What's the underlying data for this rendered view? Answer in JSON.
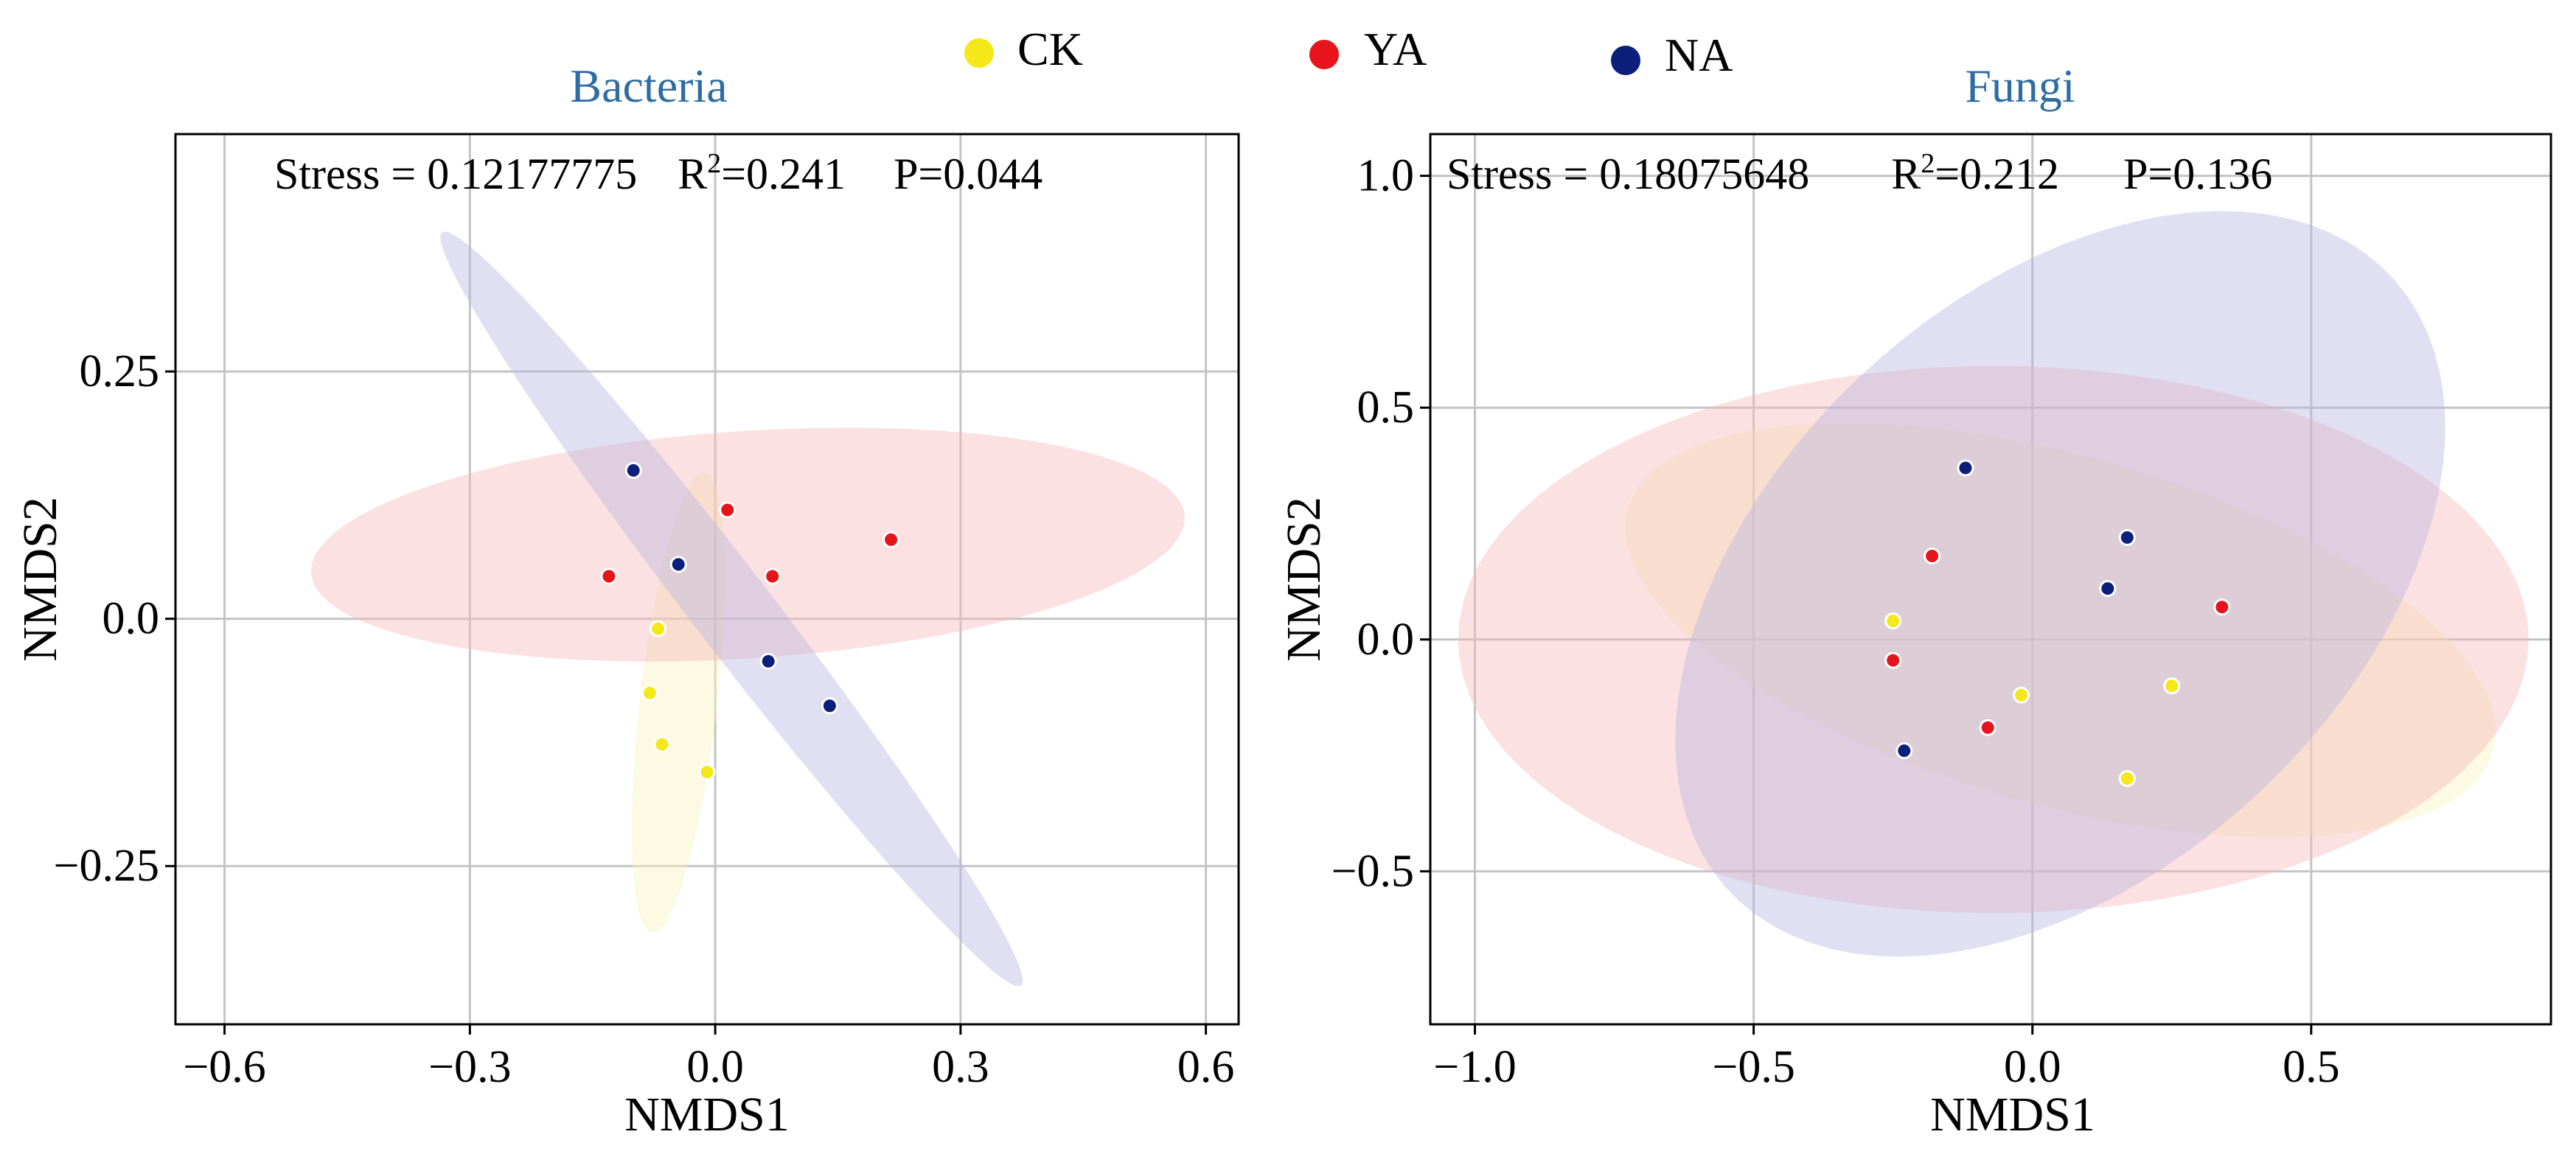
{
  "legend": [
    {
      "label": "CK",
      "color": "#f4e81a"
    },
    {
      "label": "YA",
      "color": "#e8141c"
    },
    {
      "label": "NA",
      "color": "#0c1f7a"
    }
  ],
  "chart_data": [
    {
      "type": "scatter",
      "title": "Bacteria",
      "xlabel": "NMDS1",
      "ylabel": "NMDS2",
      "xlim": [
        -0.66,
        0.64
      ],
      "ylim": [
        -0.41,
        0.49
      ],
      "xticks": [
        -0.6,
        -0.3,
        0.0,
        0.3,
        0.6
      ],
      "xtick_labels": [
        "−0.6",
        "−0.3",
        "0.0",
        "0.3",
        "0.6"
      ],
      "yticks": [
        -0.25,
        0.0,
        0.25
      ],
      "ytick_labels": [
        "−0.25",
        "0.0",
        "0.25"
      ],
      "grid": true,
      "stats": {
        "stress": "Stress = 0.12177775",
        "r2_prefix": "R",
        "r2_sup": "2",
        "r2_value": "=0.241",
        "p": "P=0.044"
      },
      "series": [
        {
          "name": "CK",
          "points": [
            [
              -0.07,
              -0.01
            ],
            [
              -0.08,
              -0.075
            ],
            [
              -0.065,
              -0.127
            ],
            [
              -0.01,
              -0.155
            ]
          ],
          "ellipse": {
            "cx": -0.045,
            "cy": -0.085,
            "rx": 0.235,
            "ry": 0.047,
            "angle_deg": 82
          }
        },
        {
          "name": "YA",
          "points": [
            [
              -0.13,
              0.043
            ],
            [
              0.015,
              0.11
            ],
            [
              0.07,
              0.043
            ],
            [
              0.215,
              0.08
            ]
          ],
          "ellipse": {
            "cx": 0.04,
            "cy": 0.075,
            "rx": 0.535,
            "ry": 0.115,
            "angle_deg": 3
          }
        },
        {
          "name": "NA",
          "points": [
            [
              -0.1,
              0.15
            ],
            [
              -0.045,
              0.055
            ],
            [
              0.065,
              -0.043
            ],
            [
              0.14,
              -0.088
            ]
          ],
          "ellipse": {
            "cx": 0.02,
            "cy": 0.01,
            "rx": 0.52,
            "ry": 0.045,
            "angle_deg": -47
          }
        }
      ]
    },
    {
      "type": "scatter",
      "title": "Fungi",
      "xlabel": "NMDS1",
      "ylabel": "NMDS2",
      "xlim": [
        -1.08,
        0.93
      ],
      "ylim": [
        -0.83,
        1.09
      ],
      "xticks": [
        -1.0,
        -0.5,
        0.0,
        0.5
      ],
      "xtick_labels": [
        "−1.0",
        "−0.5",
        "0.0",
        "0.5"
      ],
      "yticks": [
        -0.5,
        0.0,
        0.5,
        1.0
      ],
      "ytick_labels": [
        "−0.5",
        "0.0",
        "0.5",
        "1.0"
      ],
      "grid": true,
      "stats": {
        "stress": "Stress = 0.18075648",
        "r2_prefix": "R",
        "r2_sup": "2",
        "r2_value": "=0.212",
        "p": "P=0.136"
      },
      "series": [
        {
          "name": "CK",
          "points": [
            [
              -0.25,
              0.04
            ],
            [
              -0.02,
              -0.12
            ],
            [
              0.25,
              -0.1
            ],
            [
              0.17,
              -0.3
            ]
          ],
          "ellipse": {
            "cx": 0.05,
            "cy": 0.02,
            "rx": 0.82,
            "ry": 0.37,
            "angle_deg": -20
          }
        },
        {
          "name": "YA",
          "points": [
            [
              -0.18,
              0.18
            ],
            [
              -0.25,
              -0.045
            ],
            [
              -0.08,
              -0.19
            ],
            [
              0.34,
              0.07
            ]
          ],
          "ellipse": {
            "cx": -0.07,
            "cy": 0.0,
            "rx": 0.96,
            "ry": 0.59,
            "angle_deg": 0
          }
        },
        {
          "name": "NA",
          "points": [
            [
              -0.12,
              0.37
            ],
            [
              0.17,
              0.22
            ],
            [
              0.135,
              0.11
            ],
            [
              -0.23,
              -0.24
            ]
          ],
          "ellipse": {
            "cx": 0.05,
            "cy": 0.12,
            "rx": 0.9,
            "ry": 0.56,
            "angle_deg": 55
          }
        }
      ]
    }
  ]
}
